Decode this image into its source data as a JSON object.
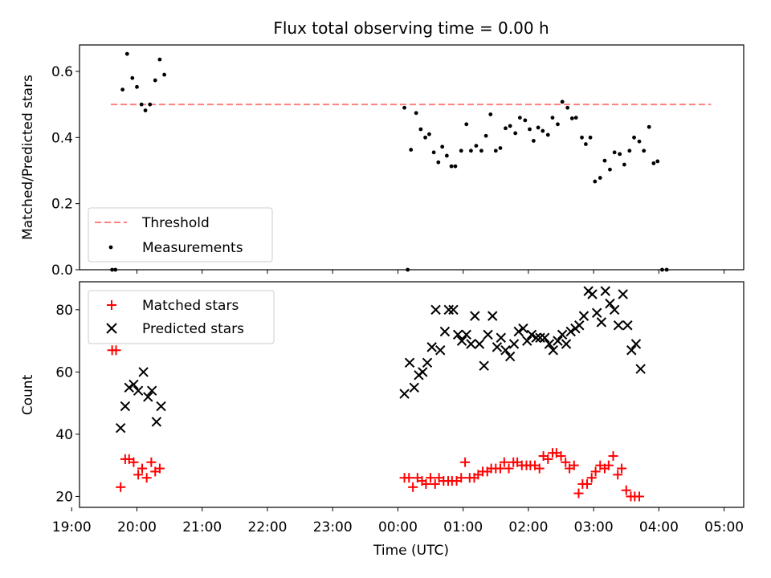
{
  "chart_data": [
    {
      "type": "scatter",
      "title": "Flux total observing time = 0.00 h",
      "ylabel": "Matched/Predicted stars",
      "xlabel": "",
      "ylim": [
        0,
        0.68
      ],
      "yticks": [
        "0.0",
        "0.2",
        "0.4",
        "0.6"
      ],
      "ytick_values": [
        0,
        0.2,
        0.4,
        0.6
      ],
      "x_unit": "hours since 00:00 UTC",
      "xlim": [
        -4.88,
        5.3
      ],
      "legend_position": "lower-left",
      "threshold": {
        "name": "Threshold",
        "value": 0.5,
        "x": [
          -4.4,
          4.8
        ],
        "color": "#ff7f7f"
      },
      "series": [
        {
          "name": "Measurements",
          "color": "#000000",
          "points": [
            [
              -4.38,
              0.0
            ],
            [
              -4.33,
              0.0
            ],
            [
              -4.22,
              0.545
            ],
            [
              -4.15,
              0.653
            ],
            [
              -4.07,
              0.58
            ],
            [
              -4.0,
              0.553
            ],
            [
              -3.93,
              0.5
            ],
            [
              -3.87,
              0.482
            ],
            [
              -3.8,
              0.5
            ],
            [
              -3.72,
              0.573
            ],
            [
              -3.65,
              0.636
            ],
            [
              -3.58,
              0.59
            ],
            [
              0.1,
              0.49
            ],
            [
              0.15,
              0.0
            ],
            [
              0.2,
              0.363
            ],
            [
              0.28,
              0.474
            ],
            [
              0.35,
              0.425
            ],
            [
              0.42,
              0.4
            ],
            [
              0.48,
              0.41
            ],
            [
              0.55,
              0.355
            ],
            [
              0.62,
              0.325
            ],
            [
              0.68,
              0.372
            ],
            [
              0.75,
              0.345
            ],
            [
              0.82,
              0.313
            ],
            [
              0.88,
              0.313
            ],
            [
              0.97,
              0.36
            ],
            [
              1.05,
              0.44
            ],
            [
              1.12,
              0.36
            ],
            [
              1.2,
              0.375
            ],
            [
              1.28,
              0.36
            ],
            [
              1.35,
              0.405
            ],
            [
              1.42,
              0.47
            ],
            [
              1.5,
              0.36
            ],
            [
              1.57,
              0.368
            ],
            [
              1.65,
              0.428
            ],
            [
              1.72,
              0.435
            ],
            [
              1.8,
              0.413
            ],
            [
              1.87,
              0.46
            ],
            [
              1.95,
              0.452
            ],
            [
              2.02,
              0.425
            ],
            [
              2.08,
              0.39
            ],
            [
              2.15,
              0.43
            ],
            [
              2.22,
              0.42
            ],
            [
              2.3,
              0.408
            ],
            [
              2.37,
              0.46
            ],
            [
              2.45,
              0.44
            ],
            [
              2.52,
              0.508
            ],
            [
              2.6,
              0.49
            ],
            [
              2.67,
              0.458
            ],
            [
              2.73,
              0.46
            ],
            [
              2.82,
              0.4
            ],
            [
              2.88,
              0.38
            ],
            [
              2.95,
              0.4
            ],
            [
              3.02,
              0.267
            ],
            [
              3.1,
              0.278
            ],
            [
              3.17,
              0.33
            ],
            [
              3.25,
              0.303
            ],
            [
              3.32,
              0.355
            ],
            [
              3.4,
              0.35
            ],
            [
              3.47,
              0.318
            ],
            [
              3.55,
              0.36
            ],
            [
              3.62,
              0.4
            ],
            [
              3.7,
              0.388
            ],
            [
              3.77,
              0.36
            ],
            [
              3.85,
              0.432
            ],
            [
              3.92,
              0.322
            ],
            [
              3.98,
              0.328
            ],
            [
              4.05,
              0.0
            ],
            [
              4.12,
              0.0
            ]
          ]
        }
      ]
    },
    {
      "type": "scatter",
      "title": "",
      "ylabel": "Count",
      "xlabel": "Time (UTC)",
      "ylim": [
        16.5,
        89
      ],
      "yticks": [
        "20",
        "40",
        "60",
        "80"
      ],
      "ytick_values": [
        20,
        40,
        60,
        80
      ],
      "x_unit": "hours since 00:00 UTC",
      "xlim": [
        -4.88,
        5.3
      ],
      "xticks": [
        "19:00",
        "20:00",
        "21:00",
        "22:00",
        "23:00",
        "00:00",
        "01:00",
        "02:00",
        "03:00",
        "04:00",
        "05:00"
      ],
      "xtick_values": [
        -5,
        -4,
        -3,
        -2,
        -1,
        0,
        1,
        2,
        3,
        4,
        5
      ],
      "legend_position": "top-left",
      "series": [
        {
          "name": "Matched stars",
          "marker": "plus",
          "color": "#ff0000",
          "points": [
            [
              -4.38,
              67
            ],
            [
              -4.32,
              67
            ],
            [
              -4.25,
              23
            ],
            [
              -4.18,
              32
            ],
            [
              -4.12,
              32
            ],
            [
              -4.05,
              31
            ],
            [
              -3.98,
              27
            ],
            [
              -3.92,
              29
            ],
            [
              -3.85,
              26
            ],
            [
              -3.78,
              31
            ],
            [
              -3.72,
              28
            ],
            [
              -3.65,
              29
            ],
            [
              0.1,
              26
            ],
            [
              0.17,
              26
            ],
            [
              0.23,
              23
            ],
            [
              0.3,
              26
            ],
            [
              0.37,
              25
            ],
            [
              0.43,
              24
            ],
            [
              0.5,
              26
            ],
            [
              0.57,
              24
            ],
            [
              0.63,
              26
            ],
            [
              0.7,
              25
            ],
            [
              0.77,
              25
            ],
            [
              0.83,
              25
            ],
            [
              0.9,
              25
            ],
            [
              0.97,
              26
            ],
            [
              1.03,
              31
            ],
            [
              1.1,
              26
            ],
            [
              1.17,
              26
            ],
            [
              1.23,
              27
            ],
            [
              1.3,
              28
            ],
            [
              1.37,
              28
            ],
            [
              1.43,
              29
            ],
            [
              1.5,
              29
            ],
            [
              1.57,
              29
            ],
            [
              1.63,
              31
            ],
            [
              1.7,
              29
            ],
            [
              1.77,
              31
            ],
            [
              1.83,
              31
            ],
            [
              1.9,
              30
            ],
            [
              1.97,
              30
            ],
            [
              2.03,
              30
            ],
            [
              2.1,
              30
            ],
            [
              2.17,
              29
            ],
            [
              2.23,
              33
            ],
            [
              2.3,
              32
            ],
            [
              2.37,
              34
            ],
            [
              2.43,
              34
            ],
            [
              2.5,
              33
            ],
            [
              2.57,
              31
            ],
            [
              2.63,
              29
            ],
            [
              2.7,
              30
            ],
            [
              2.77,
              21
            ],
            [
              2.83,
              24
            ],
            [
              2.9,
              24
            ],
            [
              2.97,
              26
            ],
            [
              3.03,
              28
            ],
            [
              3.1,
              30
            ],
            [
              3.17,
              29
            ],
            [
              3.23,
              30
            ],
            [
              3.3,
              33
            ],
            [
              3.37,
              27
            ],
            [
              3.43,
              29
            ],
            [
              3.5,
              22
            ],
            [
              3.57,
              20
            ],
            [
              3.63,
              20
            ],
            [
              3.7,
              20
            ]
          ]
        },
        {
          "name": "Predicted stars",
          "marker": "x",
          "color": "#000000",
          "points": [
            [
              -4.25,
              42
            ],
            [
              -4.18,
              49
            ],
            [
              -4.12,
              55
            ],
            [
              -4.05,
              56
            ],
            [
              -3.98,
              54
            ],
            [
              -3.9,
              60
            ],
            [
              -3.83,
              52
            ],
            [
              -3.77,
              54
            ],
            [
              -3.7,
              44
            ],
            [
              -3.63,
              49
            ],
            [
              0.1,
              53
            ],
            [
              0.18,
              63
            ],
            [
              0.25,
              55
            ],
            [
              0.32,
              59
            ],
            [
              0.38,
              60
            ],
            [
              0.45,
              63
            ],
            [
              0.52,
              68
            ],
            [
              0.58,
              80
            ],
            [
              0.65,
              67
            ],
            [
              0.72,
              73
            ],
            [
              0.78,
              80
            ],
            [
              0.85,
              80
            ],
            [
              0.92,
              72
            ],
            [
              0.98,
              70
            ],
            [
              1.05,
              72
            ],
            [
              1.12,
              69
            ],
            [
              1.18,
              78
            ],
            [
              1.25,
              69
            ],
            [
              1.32,
              62
            ],
            [
              1.38,
              72
            ],
            [
              1.45,
              78
            ],
            [
              1.52,
              68
            ],
            [
              1.58,
              71
            ],
            [
              1.65,
              67
            ],
            [
              1.72,
              65
            ],
            [
              1.78,
              69
            ],
            [
              1.85,
              73
            ],
            [
              1.92,
              74
            ],
            [
              1.98,
              70
            ],
            [
              2.05,
              72
            ],
            [
              2.12,
              71
            ],
            [
              2.18,
              71
            ],
            [
              2.25,
              71
            ],
            [
              2.32,
              69
            ],
            [
              2.38,
              67
            ],
            [
              2.45,
              70
            ],
            [
              2.52,
              72
            ],
            [
              2.58,
              69
            ],
            [
              2.65,
              73
            ],
            [
              2.72,
              74
            ],
            [
              2.78,
              75
            ],
            [
              2.85,
              78
            ],
            [
              2.92,
              86
            ],
            [
              2.98,
              85
            ],
            [
              3.05,
              79
            ],
            [
              3.12,
              76
            ],
            [
              3.18,
              86
            ],
            [
              3.25,
              82
            ],
            [
              3.32,
              80
            ],
            [
              3.38,
              75
            ],
            [
              3.45,
              85
            ],
            [
              3.52,
              75
            ],
            [
              3.58,
              67
            ],
            [
              3.65,
              69
            ],
            [
              3.72,
              61
            ]
          ]
        }
      ]
    }
  ]
}
